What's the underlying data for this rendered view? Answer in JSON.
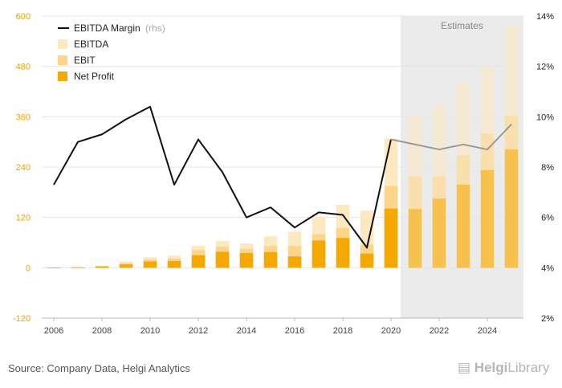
{
  "chart_data": {
    "type": "bar",
    "x": [
      2006,
      2007,
      2008,
      2009,
      2010,
      2011,
      2012,
      2013,
      2014,
      2015,
      2016,
      2017,
      2018,
      2019,
      2020,
      2021,
      2022,
      2023,
      2024,
      2025
    ],
    "x_tick_labels": [
      "2006",
      "2008",
      "2010",
      "2012",
      "2014",
      "2016",
      "2018",
      "2020",
      "2022",
      "2024"
    ],
    "series": [
      {
        "name": "EBITDA",
        "axis": "left",
        "color": "#fce9c0",
        "values": [
          1,
          2,
          5,
          15,
          25,
          29,
          52,
          64,
          58,
          75,
          86,
          122,
          150,
          136,
          308,
          362,
          385,
          440,
          480,
          580
        ]
      },
      {
        "name": "EBIT",
        "axis": "left",
        "color": "#fcd58a",
        "values": [
          0.5,
          1.5,
          4,
          11,
          20,
          22,
          42,
          50,
          45,
          52,
          52,
          80,
          95,
          55,
          195,
          218,
          218,
          268,
          320,
          362
        ]
      },
      {
        "name": "Net Profit",
        "axis": "left",
        "color": "#f5a800",
        "values": [
          0.3,
          1,
          3,
          8,
          15,
          16,
          30,
          38,
          35,
          37,
          27,
          65,
          71,
          34,
          141,
          140,
          165,
          198,
          233,
          282
        ]
      },
      {
        "name": "EBITDA Margin",
        "axis": "right",
        "type": "line",
        "color": "#111111",
        "values": [
          7.3,
          9.0,
          9.3,
          9.9,
          10.4,
          7.3,
          9.1,
          7.8,
          6.0,
          6.4,
          5.6,
          6.2,
          6.1,
          4.8,
          9.1,
          8.9,
          8.7,
          8.9,
          8.7,
          9.7
        ]
      }
    ],
    "estimates_from": 2021,
    "estimates_label": "Estimates",
    "y_left": {
      "range": [
        -120,
        600
      ],
      "ticks": [
        -120,
        0,
        120,
        240,
        360,
        480,
        600
      ]
    },
    "y_right": {
      "range": [
        2,
        14
      ],
      "ticks": [
        "2%",
        "4%",
        "6%",
        "8%",
        "10%",
        "12%",
        "14%"
      ]
    },
    "legend": {
      "position": "top-left",
      "items": [
        "EBITDA Margin",
        "EBITDA",
        "EBIT",
        "Net Profit"
      ],
      "rhs_note": "(rhs)"
    },
    "grid": true
  },
  "footer": {
    "source": "Source: Company Data, Helgi Analytics",
    "logo_bold": "Helgi",
    "logo_rest": "Library"
  }
}
